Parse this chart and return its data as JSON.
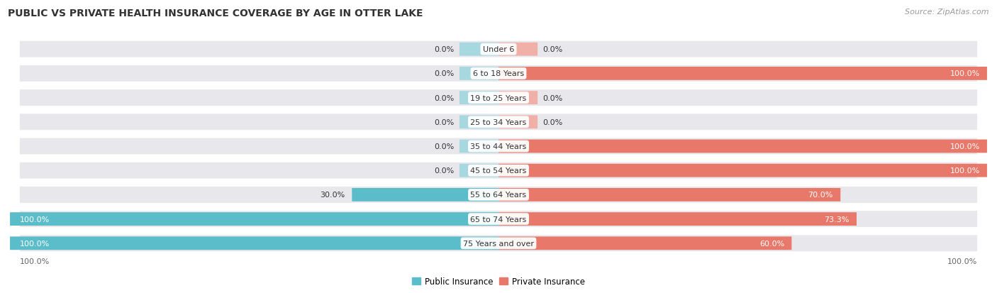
{
  "title": "PUBLIC VS PRIVATE HEALTH INSURANCE COVERAGE BY AGE IN OTTER LAKE",
  "source": "Source: ZipAtlas.com",
  "categories": [
    "Under 6",
    "6 to 18 Years",
    "19 to 25 Years",
    "25 to 34 Years",
    "35 to 44 Years",
    "45 to 54 Years",
    "55 to 64 Years",
    "65 to 74 Years",
    "75 Years and over"
  ],
  "public_values": [
    0.0,
    0.0,
    0.0,
    0.0,
    0.0,
    0.0,
    30.0,
    100.0,
    100.0
  ],
  "private_values": [
    0.0,
    100.0,
    0.0,
    0.0,
    100.0,
    100.0,
    70.0,
    73.3,
    60.0
  ],
  "public_color": "#5bbcca",
  "public_color_light": "#a8d8df",
  "private_color": "#e8796a",
  "private_color_light": "#f0b0a8",
  "row_bg_color": "#e8e8ec",
  "title_fontsize": 10,
  "source_fontsize": 8,
  "label_fontsize": 8,
  "cat_fontsize": 8,
  "tick_fontsize": 8,
  "max_val": 100.0
}
